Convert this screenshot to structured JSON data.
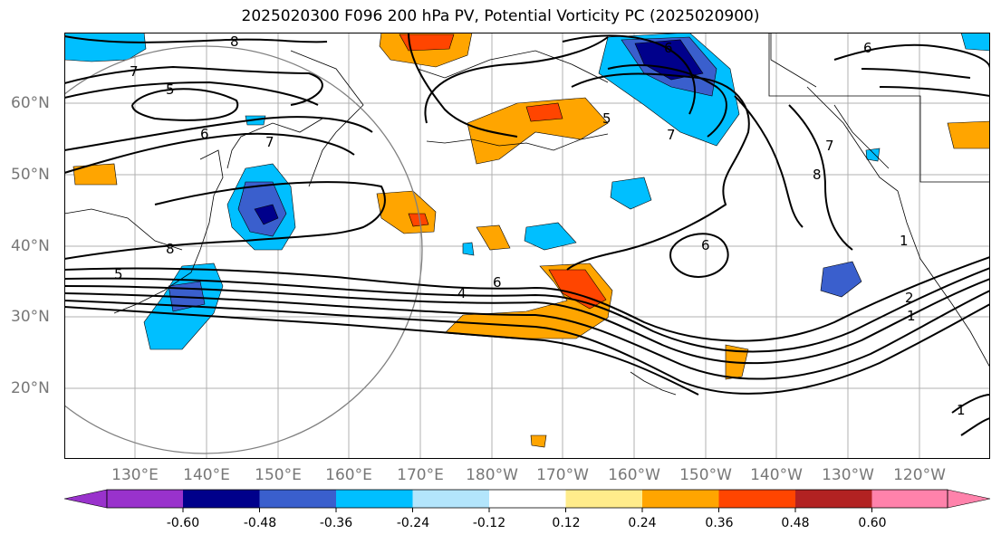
{
  "title": "2025020300 F096 200 hPa PV, Potential Vorticity PC (2025020900)",
  "lat_labels": [
    "60°N",
    "50°N",
    "40°N",
    "30°N",
    "20°N"
  ],
  "lon_labels": [
    "130°E",
    "140°E",
    "150°E",
    "160°E",
    "170°E",
    "180°W",
    "170°W",
    "160°W",
    "150°W",
    "140°W",
    "130°W",
    "120°W"
  ],
  "colorbar": {
    "tick_labels": [
      "-0.60",
      "-0.48",
      "-0.36",
      "-0.24",
      "-0.12",
      "0.12",
      "0.24",
      "0.36",
      "0.48",
      "0.60"
    ],
    "colors": [
      "#9932cc",
      "#00008b",
      "#3a5fcd",
      "#00bfff",
      "#b3e5fc",
      "#ffffff",
      "#ffec8b",
      "#ffa500",
      "#ff4500",
      "#b22222",
      "#ff82ab"
    ]
  },
  "contour_labels": [
    "8",
    "7",
    "5",
    "6",
    "7",
    "8",
    "5",
    "4",
    "6",
    "6",
    "1",
    "2",
    "1",
    "1",
    "6",
    "7",
    "8",
    "7",
    "5",
    "6"
  ]
}
